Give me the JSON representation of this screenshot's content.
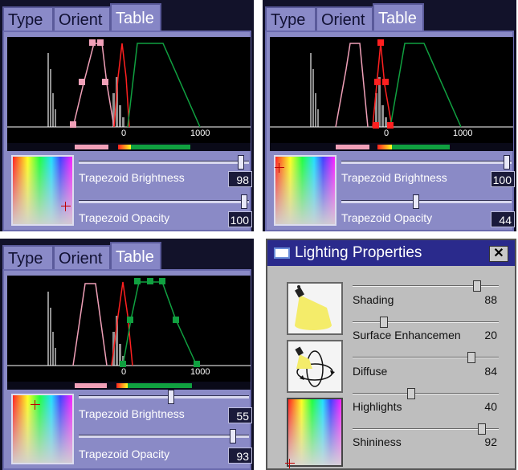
{
  "tabs": {
    "type": "Type",
    "orient": "Orient",
    "table": "Table"
  },
  "axis": {
    "zero": "0",
    "max": "1000"
  },
  "panels": [
    {
      "brightness_label": "Trapezoid Brightness",
      "brightness": "98",
      "opacity_label": "Trapezoid Opacity",
      "opacity": "100",
      "brightness_level": 0.98,
      "opacity_level": 1.0
    },
    {
      "brightness_label": "Trapezoid Brightness",
      "brightness": "100",
      "opacity_label": "Trapezoid Opacity",
      "opacity": "44",
      "brightness_level": 1.0,
      "opacity_level": 0.44
    },
    {
      "brightness_label": "Trapezoid Brightness",
      "brightness": "55",
      "opacity_label": "Trapezoid Opacity",
      "opacity": "93",
      "brightness_level": 0.55,
      "opacity_level": 0.93
    }
  ],
  "lighting": {
    "title": "Lighting Properties",
    "close": "✕",
    "sliders": [
      {
        "label": "Shading",
        "value": "88",
        "level": 0.88
      },
      {
        "label": "Surface Enhancemen",
        "value": "20",
        "level": 0.2
      },
      {
        "label": "Diffuse",
        "value": "84",
        "level": 0.84
      },
      {
        "label": "Highlights",
        "value": "40",
        "level": 0.4
      },
      {
        "label": "Shininess",
        "value": "92",
        "level": 0.92
      }
    ]
  },
  "colors": {
    "pink": "#f0a0b8",
    "red": "#ff2020",
    "green": "#10a040",
    "histogram": "#909090"
  }
}
